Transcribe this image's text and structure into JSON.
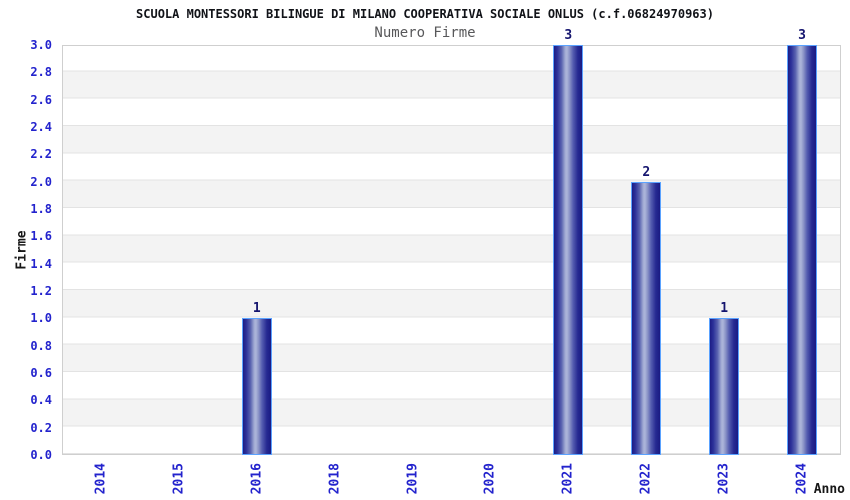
{
  "header": {
    "title": "SCUOLA MONTESSORI BILINGUE DI MILANO COOPERATIVA SOCIALE ONLUS (c.f.06824970963)",
    "subtitle": "Numero Firme"
  },
  "chart_data": {
    "type": "bar",
    "title": "Numero Firme",
    "xlabel": "Anno",
    "ylabel": "Firme",
    "categories": [
      "2014",
      "2015",
      "2016",
      "2018",
      "2019",
      "2020",
      "2021",
      "2022",
      "2023",
      "2024"
    ],
    "values": [
      0,
      0,
      1,
      0,
      0,
      0,
      3,
      2,
      1,
      3
    ],
    "bar_value_labels": [
      "",
      "",
      "1",
      "",
      "",
      "",
      "3",
      "2",
      "1",
      "3"
    ],
    "ylim": [
      0.0,
      3.0
    ],
    "ytick_step": 0.2,
    "yticks": [
      "0.0",
      "0.2",
      "0.4",
      "0.6",
      "0.8",
      "1.0",
      "1.2",
      "1.4",
      "1.6",
      "1.8",
      "2.0",
      "2.2",
      "2.4",
      "2.6",
      "2.8",
      "3.0"
    ],
    "grid": "horizontal-bands-alternating",
    "legend": "none",
    "colors": {
      "tick_label": "#2323cd",
      "title_text": "#111318",
      "subtitle_text": "#58585a",
      "bar_dark": "#1c1c85",
      "bar_highlight": "#adb5da",
      "bar_border": "#5aa2ff",
      "value_label": "#14146e",
      "band_gray": "#f3f3f3",
      "band_white": "#ffffff",
      "plot_border": "#cfcfcf"
    }
  }
}
